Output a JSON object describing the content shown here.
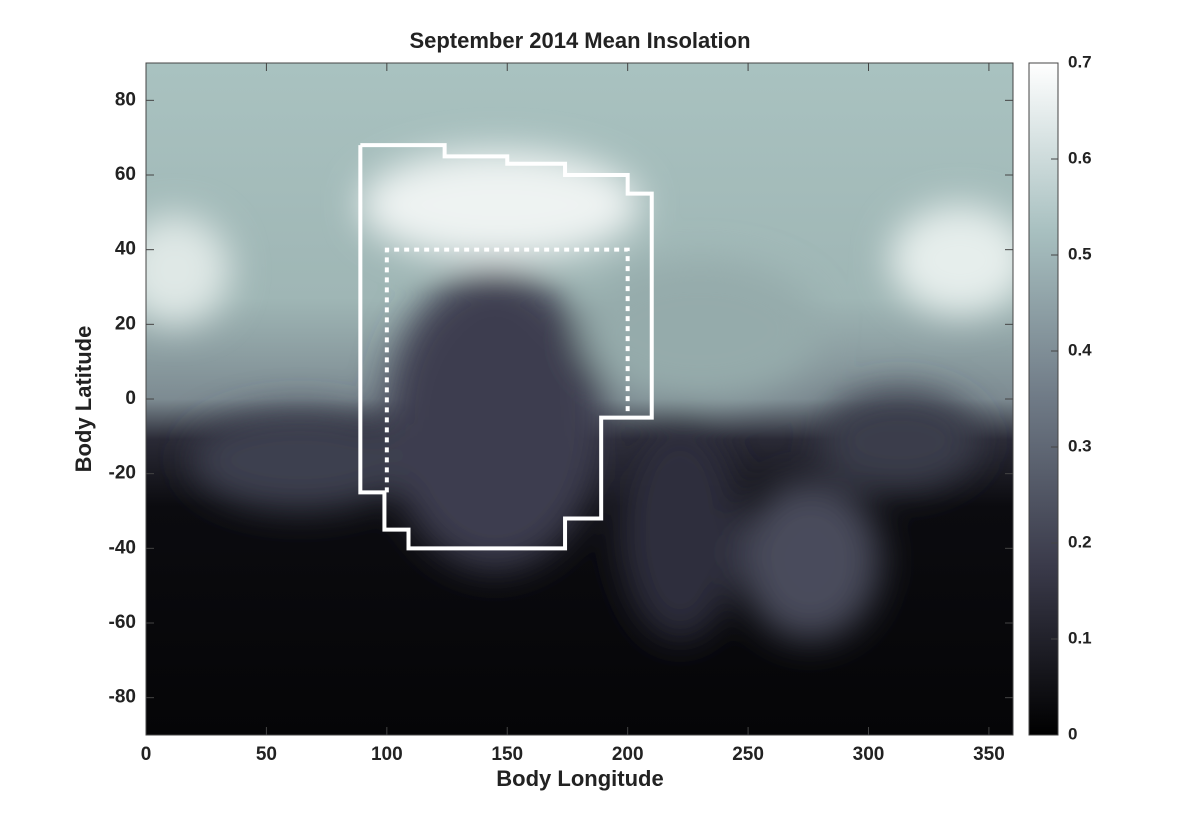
{
  "chart_data": {
    "type": "heatmap",
    "title": "September 2014 Mean Insolation",
    "xlabel": "Body Longitude",
    "ylabel": "Body Latitude",
    "xlim": [
      0,
      360
    ],
    "xticks": [
      0,
      50,
      100,
      150,
      200,
      250,
      300,
      350
    ],
    "ylim": [
      -90,
      90
    ],
    "yticks": [
      -80,
      -60,
      -40,
      -20,
      0,
      20,
      40,
      60,
      80
    ],
    "clim": [
      0,
      0.7
    ],
    "cticks": [
      0,
      0.1,
      0.2,
      0.3,
      0.4,
      0.5,
      0.6,
      0.7
    ],
    "colormap": [
      "#000000",
      "#3a3a4a",
      "#6f7a86",
      "#a8c0c0",
      "#ffffff"
    ],
    "regions": [
      {
        "style": "solid",
        "color": "#ffffff",
        "x": [
          89,
          124,
          124,
          150,
          150,
          174,
          174,
          200,
          200,
          210,
          210,
          189,
          189,
          174,
          174,
          109,
          109,
          99,
          99,
          89,
          89
        ],
        "y": [
          68,
          68,
          65,
          65,
          63,
          63,
          60,
          60,
          55,
          55,
          -5,
          -5,
          -32,
          -32,
          -40,
          -40,
          -35,
          -35,
          -25,
          -25,
          68
        ]
      },
      {
        "style": "dotted",
        "color": "#ffffff",
        "x": [
          100,
          100,
          200,
          200
        ],
        "y": [
          -25,
          40,
          40,
          -5
        ]
      }
    ]
  }
}
